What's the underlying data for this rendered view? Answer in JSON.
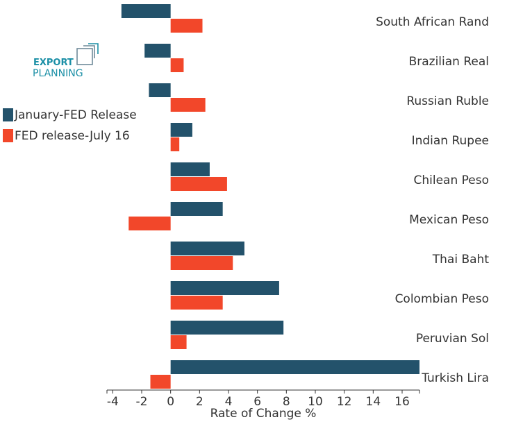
{
  "logo": {
    "line1": "EXPORT",
    "line2": "PLANNING",
    "color_primary": "#1b8fa6",
    "color_secondary": "#6f8a99"
  },
  "chart_data": {
    "type": "bar",
    "orientation": "horizontal",
    "categories": [
      "South African Rand",
      "Brazilian Real",
      "Russian Ruble",
      "Indian Rupee",
      "Chilean Peso",
      "Mexican Peso",
      "Thai Baht",
      "Colombian Peso",
      "Peruvian Sol",
      "Turkish Lira"
    ],
    "series": [
      {
        "name": "January-FED Release",
        "color": "#23526b",
        "values": [
          -3.4,
          -1.8,
          -1.5,
          1.5,
          2.7,
          3.6,
          5.1,
          7.5,
          7.8,
          17.2
        ]
      },
      {
        "name": "FED release-July 16",
        "color": "#f2472a",
        "values": [
          2.2,
          0.9,
          2.4,
          0.6,
          3.9,
          -2.9,
          4.3,
          3.6,
          1.1,
          -1.4
        ]
      }
    ],
    "xlabel": "Rate of Change %",
    "ylabel": "",
    "xlim": [
      -4.4,
      17.2
    ],
    "xticks": [
      -4,
      -2,
      0,
      2,
      4,
      6,
      8,
      10,
      12,
      14,
      16
    ],
    "legend_position": "left",
    "grid": false
  }
}
